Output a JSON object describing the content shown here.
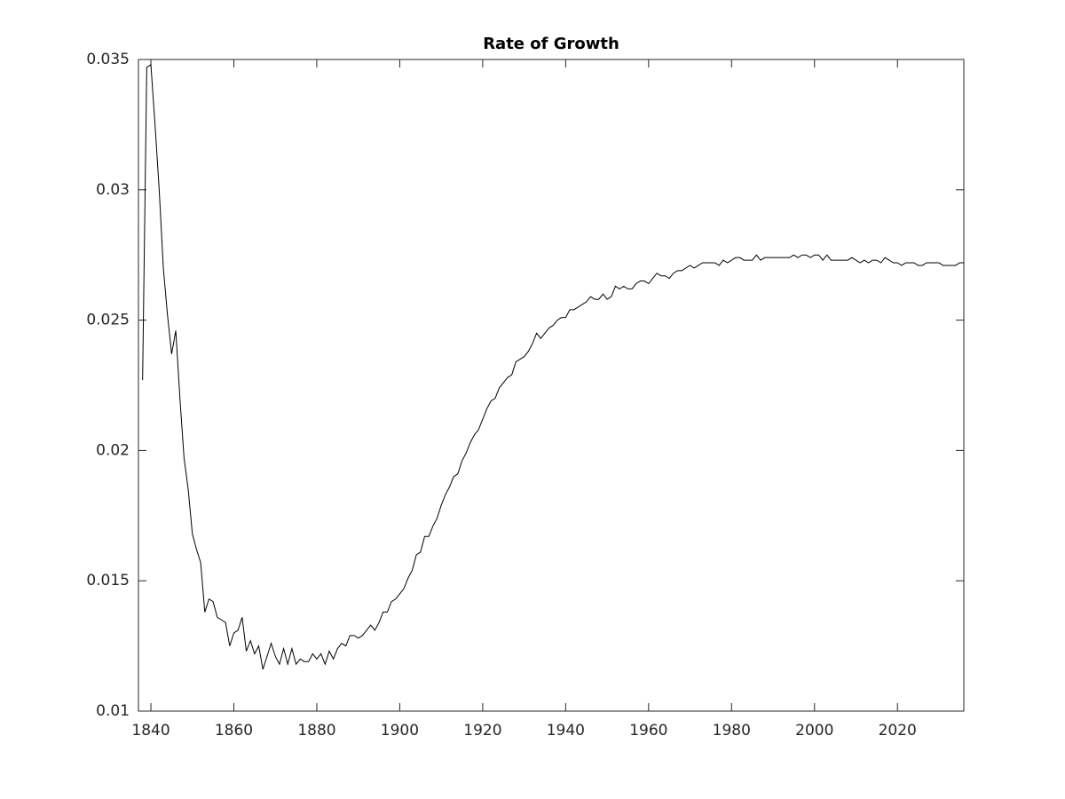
{
  "chart_data": {
    "type": "line",
    "title": "Rate of Growth",
    "color": "#000000",
    "xlim": [
      1837,
      2036
    ],
    "ylim": [
      0.01,
      0.035
    ],
    "xticks": [
      1840,
      1860,
      1880,
      1900,
      1920,
      1940,
      1960,
      1980,
      2000,
      2020
    ],
    "yticks": [
      0.01,
      0.015,
      0.02,
      0.025,
      0.03,
      0.035
    ],
    "x": [
      1838,
      1839,
      1840,
      1841,
      1842,
      1843,
      1844,
      1845,
      1846,
      1847,
      1848,
      1849,
      1850,
      1851,
      1852,
      1853,
      1854,
      1855,
      1856,
      1857,
      1858,
      1859,
      1860,
      1861,
      1862,
      1863,
      1864,
      1865,
      1866,
      1867,
      1868,
      1869,
      1870,
      1871,
      1872,
      1873,
      1874,
      1875,
      1876,
      1877,
      1878,
      1879,
      1880,
      1881,
      1882,
      1883,
      1884,
      1885,
      1886,
      1887,
      1888,
      1889,
      1890,
      1891,
      1892,
      1893,
      1894,
      1895,
      1896,
      1897,
      1898,
      1899,
      1900,
      1901,
      1902,
      1903,
      1904,
      1905,
      1906,
      1907,
      1908,
      1909,
      1910,
      1911,
      1912,
      1913,
      1914,
      1915,
      1916,
      1917,
      1918,
      1919,
      1920,
      1921,
      1922,
      1923,
      1924,
      1925,
      1926,
      1927,
      1928,
      1929,
      1930,
      1931,
      1932,
      1933,
      1934,
      1935,
      1936,
      1937,
      1938,
      1939,
      1940,
      1941,
      1942,
      1943,
      1944,
      1945,
      1946,
      1947,
      1948,
      1949,
      1950,
      1951,
      1952,
      1953,
      1954,
      1955,
      1956,
      1957,
      1958,
      1959,
      1960,
      1961,
      1962,
      1963,
      1964,
      1965,
      1966,
      1967,
      1968,
      1969,
      1970,
      1971,
      1972,
      1973,
      1974,
      1975,
      1976,
      1977,
      1978,
      1979,
      1980,
      1981,
      1982,
      1983,
      1984,
      1985,
      1986,
      1987,
      1988,
      1989,
      1990,
      1991,
      1992,
      1993,
      1994,
      1995,
      1996,
      1997,
      1998,
      1999,
      2000,
      2001,
      2002,
      2003,
      2004,
      2005,
      2006,
      2007,
      2008,
      2009,
      2010,
      2011,
      2012,
      2013,
      2014,
      2015,
      2016,
      2017,
      2018,
      2019,
      2020,
      2021,
      2022,
      2023,
      2024,
      2025,
      2026,
      2027,
      2028,
      2029,
      2030,
      2031,
      2032,
      2033,
      2034,
      2035,
      2036
    ],
    "values": [
      0.0227,
      0.0347,
      0.0348,
      0.0325,
      0.03,
      0.027,
      0.0252,
      0.0237,
      0.0246,
      0.022,
      0.0197,
      0.0185,
      0.0168,
      0.0162,
      0.0157,
      0.0138,
      0.0143,
      0.0142,
      0.0136,
      0.0135,
      0.0134,
      0.0125,
      0.013,
      0.0131,
      0.0136,
      0.0123,
      0.0127,
      0.0122,
      0.0125,
      0.0116,
      0.0121,
      0.0126,
      0.0121,
      0.0118,
      0.0124,
      0.0118,
      0.0124,
      0.0118,
      0.012,
      0.0119,
      0.0119,
      0.0122,
      0.012,
      0.0122,
      0.0118,
      0.0123,
      0.012,
      0.0124,
      0.0126,
      0.0125,
      0.0129,
      0.0129,
      0.0128,
      0.0129,
      0.0131,
      0.0133,
      0.0131,
      0.0134,
      0.0138,
      0.0138,
      0.0142,
      0.0143,
      0.0145,
      0.0147,
      0.0151,
      0.0154,
      0.016,
      0.0161,
      0.0167,
      0.0167,
      0.0171,
      0.0174,
      0.0179,
      0.0183,
      0.0186,
      0.019,
      0.0191,
      0.0196,
      0.0199,
      0.0203,
      0.0206,
      0.0208,
      0.0212,
      0.0216,
      0.0219,
      0.022,
      0.0224,
      0.0226,
      0.0228,
      0.0229,
      0.0234,
      0.0235,
      0.0236,
      0.0238,
      0.0241,
      0.0245,
      0.0243,
      0.0245,
      0.0247,
      0.0248,
      0.025,
      0.0251,
      0.0251,
      0.0254,
      0.0254,
      0.0255,
      0.0256,
      0.0257,
      0.0259,
      0.0258,
      0.0258,
      0.026,
      0.0258,
      0.0259,
      0.0263,
      0.0262,
      0.0263,
      0.0262,
      0.0262,
      0.0264,
      0.0265,
      0.0265,
      0.0264,
      0.0266,
      0.0268,
      0.0267,
      0.0267,
      0.0266,
      0.0268,
      0.0269,
      0.0269,
      0.027,
      0.0271,
      0.027,
      0.0271,
      0.0272,
      0.0272,
      0.0272,
      0.0272,
      0.0271,
      0.0273,
      0.0272,
      0.0273,
      0.0274,
      0.0274,
      0.0273,
      0.0273,
      0.0273,
      0.0275,
      0.0273,
      0.0274,
      0.0274,
      0.0274,
      0.0274,
      0.0274,
      0.0274,
      0.0274,
      0.0275,
      0.0274,
      0.0275,
      0.0275,
      0.0274,
      0.0275,
      0.0275,
      0.0273,
      0.0275,
      0.0273,
      0.0273,
      0.0273,
      0.0273,
      0.0273,
      0.0274,
      0.0273,
      0.0272,
      0.0273,
      0.0272,
      0.0273,
      0.0273,
      0.0272,
      0.0274,
      0.0273,
      0.0272,
      0.0272,
      0.0271,
      0.0272,
      0.0272,
      0.0272,
      0.0271,
      0.0271,
      0.0272,
      0.0272,
      0.0272,
      0.0272,
      0.0271,
      0.0271,
      0.0271,
      0.0271,
      0.0272,
      0.0272
    ]
  }
}
